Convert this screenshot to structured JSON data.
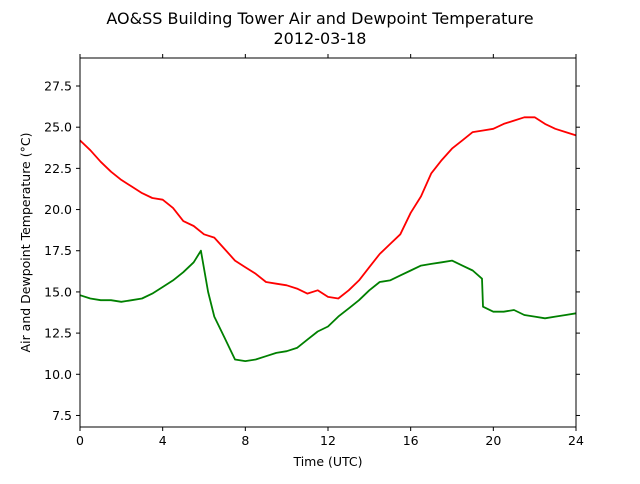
{
  "chart_data": {
    "type": "line",
    "title": "AO&SS Building Tower Air and Dewpoint Temperature",
    "subtitle": "2012-03-18",
    "xlabel": "Time (UTC)",
    "ylabel": "Air and Dewpoint Temperature (°C)",
    "xlim": [
      0,
      24
    ],
    "ylim": [
      6.8,
      29.2
    ],
    "xticks": [
      0,
      4,
      8,
      12,
      16,
      20,
      24
    ],
    "yticks": [
      7.5,
      10.0,
      12.5,
      15.0,
      17.5,
      20.0,
      22.5,
      25.0,
      27.5
    ],
    "xtick_labels": [
      "0",
      "4",
      "8",
      "12",
      "16",
      "20",
      "24"
    ],
    "ytick_labels": [
      "7.5",
      "10.0",
      "12.5",
      "15.0",
      "17.5",
      "20.0",
      "22.5",
      "25.0",
      "27.5"
    ],
    "grid": false,
    "legend": "none",
    "series": [
      {
        "color": "#ff0000",
        "x": [
          0,
          0.5,
          1,
          1.5,
          2,
          2.5,
          3,
          3.5,
          4,
          4.5,
          5,
          5.5,
          6,
          6.5,
          7,
          7.5,
          8,
          8.5,
          9,
          9.5,
          10,
          10.5,
          11,
          11.5,
          12,
          12.5,
          13,
          13.5,
          14,
          14.5,
          15,
          15.5,
          16,
          16.5,
          17,
          17.5,
          18,
          18.5,
          19,
          19.5,
          20,
          20.5,
          21,
          21.5,
          22,
          22.5,
          23,
          23.5,
          24
        ],
        "y": [
          24.2,
          23.6,
          22.9,
          22.3,
          21.8,
          21.4,
          21.0,
          20.7,
          20.6,
          20.1,
          19.3,
          19.0,
          18.5,
          18.3,
          17.6,
          16.9,
          16.5,
          16.1,
          15.6,
          15.5,
          15.4,
          15.2,
          14.9,
          15.1,
          14.7,
          14.6,
          15.1,
          15.7,
          16.5,
          17.3,
          17.9,
          18.5,
          19.8,
          20.8,
          22.2,
          23.0,
          23.7,
          24.2,
          24.7,
          24.8,
          24.9,
          25.2,
          25.4,
          25.6,
          25.6,
          25.2,
          24.9,
          24.7,
          24.5
        ]
      },
      {
        "color": "#008000",
        "x": [
          0,
          0.5,
          1,
          1.5,
          2,
          2.5,
          3,
          3.5,
          4,
          4.5,
          5,
          5.5,
          5.85,
          6.2,
          6.5,
          7,
          7.5,
          8,
          8.5,
          9,
          9.5,
          10,
          10.5,
          11,
          11.5,
          12,
          12.5,
          13,
          13.5,
          14,
          14.5,
          15,
          15.5,
          16,
          16.5,
          17,
          17.5,
          18,
          18.5,
          19,
          19.45,
          19.5,
          20,
          20.5,
          21,
          21.5,
          22,
          22.5,
          23,
          23.5,
          24
        ],
        "y": [
          14.8,
          14.6,
          14.5,
          14.5,
          14.4,
          14.5,
          14.6,
          14.9,
          15.3,
          15.7,
          16.2,
          16.8,
          17.5,
          15.0,
          13.5,
          12.2,
          10.9,
          10.8,
          10.9,
          11.1,
          11.3,
          11.4,
          11.6,
          12.1,
          12.6,
          12.9,
          13.5,
          14.0,
          14.5,
          15.1,
          15.6,
          15.7,
          16.0,
          16.3,
          16.6,
          16.7,
          16.8,
          16.9,
          16.6,
          16.3,
          15.8,
          14.1,
          13.8,
          13.8,
          13.9,
          13.6,
          13.5,
          13.4,
          13.5,
          13.6,
          13.7
        ]
      }
    ]
  }
}
